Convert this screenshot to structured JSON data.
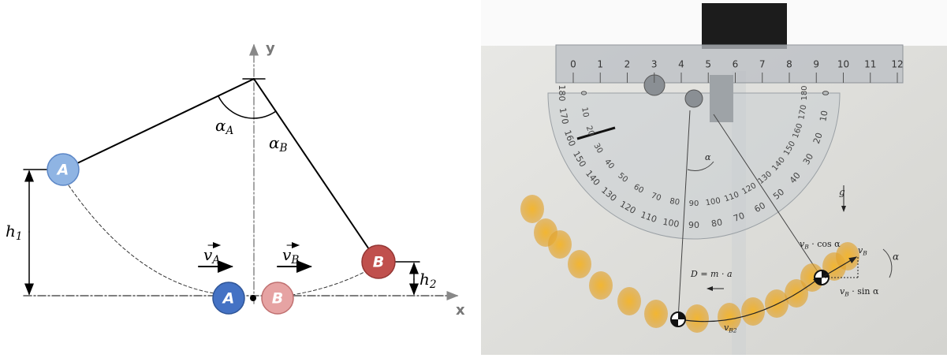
{
  "diagram": {
    "axis_y": "y",
    "axis_x": "x",
    "ball_a_top": "A",
    "ball_a_bottom": "A",
    "ball_b_top": "B",
    "ball_b_bottom": "B",
    "angle_a": {
      "main": "α",
      "sub": "A"
    },
    "angle_b": {
      "main": "α",
      "sub": "B"
    },
    "height_1": {
      "main": "h",
      "sub": "1"
    },
    "height_2": {
      "main": "h",
      "sub": "2"
    },
    "velocity_a": {
      "main": "v",
      "sub": "A"
    },
    "velocity_b": {
      "main": "v",
      "sub": "B"
    }
  },
  "photo": {
    "ruler_labels": [
      "0",
      "1",
      "2",
      "3",
      "4",
      "5",
      "6",
      "7",
      "8",
      "9",
      "10",
      "11",
      "12"
    ],
    "protractor_outer": [
      "0",
      "10",
      "20",
      "30",
      "40",
      "50",
      "60",
      "70",
      "80",
      "90",
      "100",
      "110",
      "120",
      "130",
      "140",
      "150",
      "160",
      "170",
      "180"
    ],
    "protractor_inner": [
      "180",
      "170",
      "160",
      "150",
      "140",
      "130",
      "120",
      "110",
      "100",
      "90",
      "80",
      "70",
      "60",
      "50",
      "40",
      "30",
      "20",
      "10",
      "0"
    ],
    "gravity": "g",
    "angle_string": "α",
    "angle_velocity": "α",
    "drag": "D = m · a",
    "v_cos": {
      "main": "v",
      "sub": "B",
      "tail": " · cos α"
    },
    "v_sin": {
      "main": "v",
      "sub": "B",
      "tail": " · sin α"
    },
    "v_total": {
      "main": "v",
      "sub": "B"
    },
    "v_bottom": {
      "main": "v",
      "sub": "B2"
    }
  }
}
